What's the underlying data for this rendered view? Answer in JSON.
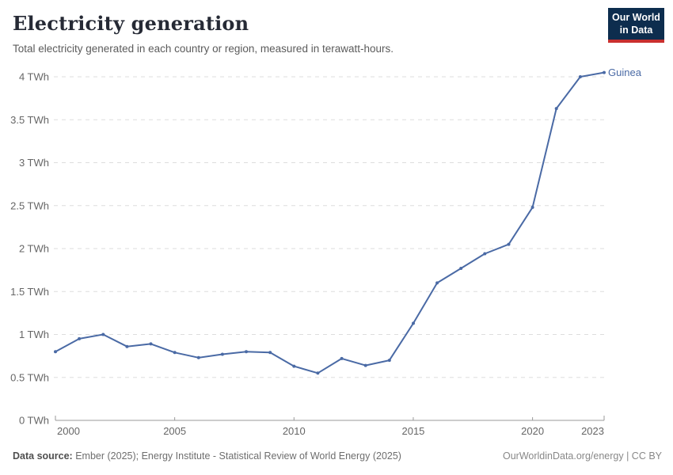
{
  "header": {
    "title": "Electricity generation",
    "subtitle": "Total electricity generated in each country or region, measured in terawatt-hours."
  },
  "logo": {
    "line1": "Our World",
    "line2": "in Data",
    "bg_color": "#0d2d4e",
    "accent_color": "#c9302f"
  },
  "chart_data": {
    "type": "line",
    "title": "Electricity generation",
    "xlabel": "",
    "ylabel": "TWh",
    "x": [
      2000,
      2001,
      2002,
      2003,
      2004,
      2005,
      2006,
      2007,
      2008,
      2009,
      2010,
      2011,
      2012,
      2013,
      2014,
      2015,
      2016,
      2017,
      2018,
      2019,
      2020,
      2021,
      2022,
      2023
    ],
    "series": [
      {
        "name": "Guinea",
        "color": "#4a6aa5",
        "values": [
          0.8,
          0.95,
          1.0,
          0.86,
          0.89,
          0.79,
          0.73,
          0.77,
          0.8,
          0.79,
          0.63,
          0.55,
          0.72,
          0.64,
          0.7,
          1.13,
          1.6,
          1.77,
          1.94,
          2.05,
          2.48,
          3.63,
          4.0,
          4.05
        ]
      }
    ],
    "x_ticks": [
      2000,
      2005,
      2010,
      2015,
      2020,
      2023
    ],
    "y_ticks": [
      0,
      0.5,
      1,
      1.5,
      2,
      2.5,
      3,
      3.5,
      4
    ],
    "y_unit": " TWh",
    "xlim": [
      2000,
      2023
    ],
    "ylim": [
      0,
      4.3
    ],
    "grid": "horizontal-dashed",
    "legend_position": "end-of-line-label",
    "grid_color": "#dddddd",
    "axis_color": "#999999",
    "tick_label_color": "#666666"
  },
  "footer": {
    "source_label": "Data source:",
    "source_text": " Ember (2025); Energy Institute - Statistical Review of World Energy (2025)",
    "credit": "OurWorldinData.org/energy | CC BY"
  }
}
